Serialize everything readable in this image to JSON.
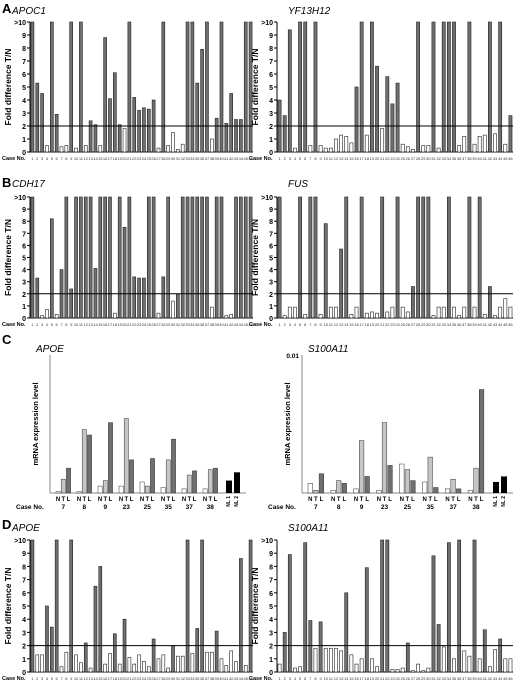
{
  "colors": {
    "gray_bar": "#6f6f6f",
    "black_bar": "#000000",
    "white_bar": "#ffffff",
    "light_bar": "#c6c6c6",
    "axis": "#000000"
  },
  "chart_data": [
    {
      "panel": "A",
      "title": "APOC1",
      "type": "bar",
      "ylabel": "Fold difference T/N",
      "xlabel_prefix": "Case No.",
      "ylim": [
        0,
        10
      ],
      "yticks": [
        "0",
        "1",
        "2",
        "3",
        "4",
        "5",
        "6",
        "7",
        "8",
        "9",
        ">10"
      ],
      "threshold": 2,
      "categories": [
        "1",
        "2",
        "3",
        "4",
        "5",
        "6",
        "7",
        "8",
        "9",
        "10",
        "11",
        "12",
        "13",
        "14",
        "15",
        "16",
        "17",
        "18",
        "19",
        "20",
        "21",
        "22",
        "23",
        "24",
        "25",
        "26",
        "27",
        "28",
        "29",
        "30",
        "31",
        "32",
        "33",
        "34",
        "35",
        "36",
        "37",
        "38",
        "39",
        "40",
        "41",
        "42",
        "43",
        "44",
        "45",
        "46"
      ],
      "values": [
        10,
        5.3,
        4.5,
        0.5,
        10,
        2.9,
        0.4,
        0.5,
        10,
        0.3,
        10,
        0.5,
        2.4,
        2.1,
        0.5,
        8.8,
        4.1,
        6.1,
        2.1,
        1.8,
        10,
        4.2,
        3.2,
        3.4,
        3.3,
        4.0,
        0.3,
        10,
        0.5,
        1.5,
        0.2,
        0.6,
        10,
        10,
        5.3,
        7.9,
        10,
        1.0,
        2.6,
        10,
        2.2,
        4.5,
        2.5,
        2.5,
        10,
        10
      ]
    },
    {
      "panel": "",
      "title": "YF13H12",
      "type": "bar",
      "ylabel": "Fold difference T/N",
      "xlabel_prefix": "Case No.",
      "ylim": [
        0,
        10
      ],
      "yticks": [
        "0",
        "1",
        "2",
        "3",
        "4",
        "5",
        "6",
        "7",
        "8",
        "9",
        ">10"
      ],
      "threshold": 2,
      "categories": [
        "1",
        "2",
        "3",
        "4",
        "5",
        "6",
        "7",
        "8",
        "9",
        "10",
        "11",
        "12",
        "13",
        "14",
        "15",
        "16",
        "17",
        "18",
        "19",
        "20",
        "21",
        "22",
        "23",
        "24",
        "25",
        "26",
        "27",
        "28",
        "29",
        "30",
        "31",
        "32",
        "33",
        "34",
        "35",
        "36",
        "37",
        "38",
        "39",
        "40",
        "41",
        "42",
        "43",
        "44",
        "45",
        "46"
      ],
      "values": [
        4.0,
        2.8,
        9.4,
        0.3,
        10,
        10,
        0.5,
        10,
        0.5,
        0.3,
        0.3,
        1.0,
        1.3,
        1.2,
        0.7,
        5.0,
        10,
        1.3,
        10,
        6.6,
        1.8,
        5.8,
        3.7,
        5.3,
        0.6,
        0.4,
        0.2,
        10,
        0.5,
        0.5,
        10,
        0.3,
        10,
        10,
        10,
        0.5,
        1.2,
        10,
        0.6,
        1.2,
        1.3,
        10,
        1.4,
        10,
        0.6,
        2.8
      ]
    },
    {
      "panel": "B",
      "title": "CDH17",
      "type": "bar",
      "ylabel": "Fold difference T/N",
      "xlabel_prefix": "Case No.",
      "ylim": [
        0,
        10
      ],
      "yticks": [
        "0",
        "1",
        "2",
        "3",
        "4",
        "5",
        "6",
        "7",
        "8",
        "9",
        ">10"
      ],
      "threshold": 2,
      "categories": [
        "1",
        "2",
        "3",
        "4",
        "5",
        "6",
        "7",
        "8",
        "9",
        "10",
        "11",
        "12",
        "13",
        "14",
        "15",
        "16",
        "17",
        "18",
        "19",
        "20",
        "21",
        "22",
        "23",
        "24",
        "25",
        "26",
        "27",
        "28",
        "29",
        "30",
        "31",
        "32",
        "33",
        "34",
        "35",
        "36",
        "37",
        "38",
        "39",
        "40",
        "41",
        "42",
        "43",
        "44",
        "45",
        "46"
      ],
      "values": [
        10,
        3.3,
        0.2,
        0.7,
        8.2,
        0.3,
        4.0,
        10,
        2.4,
        10,
        10,
        10,
        10,
        4.1,
        10,
        10,
        10,
        0.4,
        10,
        7.5,
        10,
        3.4,
        3.3,
        3.3,
        10,
        10,
        0.4,
        3.4,
        10,
        1.4,
        2.0,
        10,
        10,
        10,
        10,
        10,
        10,
        0.9,
        10,
        10,
        0.2,
        0.3,
        10,
        10,
        10,
        10
      ]
    },
    {
      "panel": "",
      "title": "FUS",
      "type": "bar",
      "ylabel": "Fold difference T/N",
      "xlabel_prefix": "Case No.",
      "ylim": [
        0,
        10
      ],
      "yticks": [
        "0",
        "1",
        "2",
        "3",
        "4",
        "5",
        "6",
        "7",
        "8",
        "9",
        ">10"
      ],
      "threshold": 2,
      "categories": [
        "1",
        "2",
        "3",
        "4",
        "5",
        "6",
        "7",
        "8",
        "9",
        "10",
        "11",
        "12",
        "13",
        "14",
        "15",
        "16",
        "17",
        "18",
        "19",
        "20",
        "21",
        "22",
        "23",
        "24",
        "25",
        "26",
        "27",
        "28",
        "29",
        "30",
        "31",
        "32",
        "33",
        "34",
        "35",
        "36",
        "37",
        "38",
        "39",
        "40",
        "41",
        "42",
        "43",
        "44",
        "45",
        "46"
      ],
      "values": [
        10,
        0.2,
        0.9,
        0.9,
        10,
        0.3,
        10,
        10,
        0.3,
        7.8,
        0.9,
        0.9,
        5.7,
        10,
        0.3,
        0.9,
        10,
        0.4,
        0.5,
        0.4,
        10,
        0.5,
        0.9,
        10,
        0.9,
        0.5,
        2.6,
        10,
        10,
        10,
        0.2,
        0.9,
        0.9,
        10,
        0.9,
        0.2,
        0.9,
        10,
        0.9,
        10,
        0.3,
        2.6,
        0.2,
        0.9,
        1.6,
        0.9
      ]
    },
    {
      "panel": "C",
      "title": "APOE",
      "type": "bar",
      "ylabel": "mRNA expression level",
      "xlabel_prefix": "Case No.",
      "ylim": [
        0,
        1
      ],
      "yticks": [],
      "group_labels": [
        "7",
        "8",
        "9",
        "23",
        "25",
        "35",
        "37",
        "38"
      ],
      "sub_labels": [
        "N",
        "T",
        "L"
      ],
      "series": [
        {
          "name": "N",
          "values": [
            0.01,
            0.01,
            0.05,
            0.05,
            0.08,
            0.04,
            0.03,
            0.03
          ]
        },
        {
          "name": "T",
          "values": [
            0.1,
            0.46,
            0.09,
            0.54,
            0.05,
            0.24,
            0.13,
            0.17
          ]
        },
        {
          "name": "L",
          "values": [
            0.18,
            0.42,
            0.51,
            0.24,
            0.25,
            0.39,
            0.16,
            0.18
          ]
        }
      ],
      "controls": {
        "labels": [
          "NL 1",
          "NL 2"
        ],
        "values": [
          0.09,
          0.15
        ]
      }
    },
    {
      "panel": "",
      "title": "S100A11",
      "type": "bar",
      "ylabel": "mRNA expression level",
      "xlabel_prefix": "Case No.",
      "ylim": [
        0,
        0.01
      ],
      "yticks": [
        "0.01"
      ],
      "group_labels": [
        "7",
        "8",
        "9",
        "23",
        "25",
        "35",
        "37",
        "38"
      ],
      "sub_labels": [
        "N",
        "T",
        "L"
      ],
      "series": [
        {
          "name": "N",
          "values": [
            0.0007,
            0.0002,
            0.0003,
            0.0002,
            0.0021,
            0.0008,
            0.0003,
            0.0002
          ]
        },
        {
          "name": "T",
          "values": [
            0.0002,
            0.0009,
            0.0038,
            0.0051,
            0.0017,
            0.0026,
            0.001,
            0.0018
          ]
        },
        {
          "name": "L",
          "values": [
            0.0014,
            0.0007,
            0.0012,
            0.002,
            0.0009,
            0.0004,
            0.0003,
            0.0075
          ]
        }
      ],
      "controls": {
        "labels": [
          "NL 1",
          "NL 2"
        ],
        "values": [
          0.0008,
          0.0012
        ]
      }
    },
    {
      "panel": "D",
      "title": "APOE",
      "type": "bar",
      "ylabel": "Fold difference T/N",
      "xlabel_prefix": "Case No.",
      "ylim": [
        0,
        10
      ],
      "yticks": [
        "0",
        "1",
        "2",
        "3",
        "4",
        "5",
        "6",
        "7",
        "8",
        "9",
        ">10"
      ],
      "threshold": 2,
      "categories": [
        "1",
        "2",
        "3",
        "4",
        "5",
        "6",
        "7",
        "8",
        "9",
        "10",
        "11",
        "12",
        "13",
        "14",
        "15",
        "16",
        "17",
        "18",
        "19",
        "20",
        "21",
        "22",
        "23",
        "24",
        "25",
        "26",
        "27",
        "28",
        "29",
        "30",
        "31",
        "32",
        "33",
        "34",
        "35",
        "36",
        "37",
        "38",
        "39",
        "40",
        "41",
        "42",
        "43",
        "44",
        "45",
        "46"
      ],
      "values": [
        10,
        1.3,
        1.3,
        5.0,
        3.4,
        10,
        0.4,
        1.5,
        10,
        1.3,
        0.7,
        2.2,
        0.3,
        6.5,
        8.0,
        0.6,
        1.4,
        2.9,
        0.6,
        4.0,
        1.1,
        0.6,
        1.3,
        0.8,
        0.4,
        2.5,
        1.0,
        1.3,
        0.3,
        2.0,
        1.2,
        1.2,
        10,
        1.4,
        3.3,
        10,
        1.5,
        1.5,
        3.1,
        1.0,
        0.5,
        1.6,
        0.8,
        8.6,
        0.5,
        10
      ]
    },
    {
      "panel": "",
      "title": "S100A11",
      "type": "bar",
      "ylabel": "Fold difference T/N",
      "xlabel_prefix": "Case No.",
      "ylim": [
        0,
        10
      ],
      "yticks": [
        "0",
        "1",
        "2",
        "3",
        "4",
        "5",
        "6",
        "7",
        "8",
        "9",
        ">10"
      ],
      "threshold": 2,
      "categories": [
        "1",
        "2",
        "3",
        "4",
        "5",
        "6",
        "7",
        "8",
        "9",
        "10",
        "11",
        "12",
        "13",
        "14",
        "15",
        "16",
        "17",
        "18",
        "19",
        "20",
        "21",
        "22",
        "23",
        "24",
        "25",
        "26",
        "27",
        "28",
        "29",
        "30",
        "31",
        "32",
        "33",
        "34",
        "35",
        "36",
        "37",
        "38",
        "39",
        "40",
        "41",
        "42",
        "43",
        "44",
        "45",
        "46"
      ],
      "values": [
        0.6,
        3.0,
        8.9,
        0.3,
        0.4,
        9.8,
        3.9,
        1.8,
        3.8,
        1.8,
        1.8,
        1.8,
        1.6,
        6.0,
        1.3,
        0.6,
        1.0,
        7.9,
        1.0,
        0.4,
        10,
        10,
        0.2,
        0.2,
        0.3,
        2.2,
        0.1,
        0.6,
        0.1,
        0.3,
        8.8,
        3.6,
        1.9,
        9.8,
        1.0,
        10,
        1.6,
        1.2,
        10,
        1.0,
        3.2,
        0.4,
        1.7,
        2.5,
        1.0,
        1.0
      ]
    }
  ]
}
